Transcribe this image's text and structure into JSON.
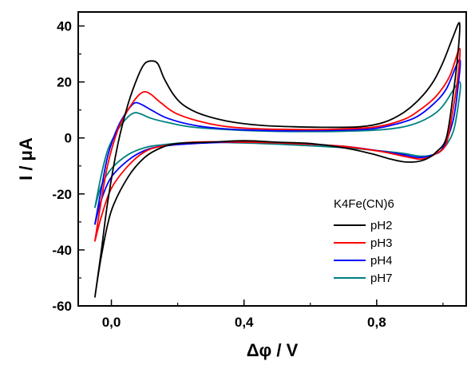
{
  "chart_data": {
    "type": "line",
    "title": "",
    "xlabel": "Δφ / V",
    "ylabel": "I / μA",
    "xlim": [
      -0.1,
      1.07
    ],
    "ylim": [
      -60,
      45
    ],
    "xticks": [
      {
        "value": 0.0,
        "label": "0,0"
      },
      {
        "value": 0.4,
        "label": "0,4"
      },
      {
        "value": 0.8,
        "label": "0,8"
      }
    ],
    "yticks": [
      {
        "value": -60,
        "label": "-60"
      },
      {
        "value": -40,
        "label": "-40"
      },
      {
        "value": -20,
        "label": "-20"
      },
      {
        "value": 0,
        "label": "0"
      },
      {
        "value": 20,
        "label": "20"
      },
      {
        "value": 40,
        "label": "40"
      }
    ],
    "grid": false,
    "legend": {
      "title": "K4Fe(CN)6",
      "position": "lower-right"
    },
    "series": [
      {
        "name": "pH2",
        "color": "#000000",
        "points": [
          [
            -0.05,
            -57
          ],
          [
            -0.03,
            -40
          ],
          [
            -0.01,
            -22
          ],
          [
            0.02,
            -2
          ],
          [
            0.05,
            12
          ],
          [
            0.08,
            22
          ],
          [
            0.1,
            26.5
          ],
          [
            0.12,
            27.5
          ],
          [
            0.14,
            26.5
          ],
          [
            0.16,
            21
          ],
          [
            0.19,
            15
          ],
          [
            0.22,
            11.5
          ],
          [
            0.27,
            8.5
          ],
          [
            0.35,
            6
          ],
          [
            0.45,
            4.5
          ],
          [
            0.55,
            4
          ],
          [
            0.65,
            3.8
          ],
          [
            0.75,
            4
          ],
          [
            0.82,
            5.5
          ],
          [
            0.88,
            9
          ],
          [
            0.93,
            14
          ],
          [
            0.97,
            20
          ],
          [
            1.0,
            27
          ],
          [
            1.03,
            36
          ],
          [
            1.05,
            41
          ],
          [
            1.045,
            30
          ],
          [
            1.03,
            15
          ],
          [
            1.01,
            0
          ],
          [
            0.98,
            -5
          ],
          [
            0.95,
            -7.5
          ],
          [
            0.92,
            -8.5
          ],
          [
            0.88,
            -8.5
          ],
          [
            0.84,
            -7.5
          ],
          [
            0.78,
            -5.5
          ],
          [
            0.7,
            -3.5
          ],
          [
            0.6,
            -2
          ],
          [
            0.5,
            -1.5
          ],
          [
            0.4,
            -1
          ],
          [
            0.3,
            -1.5
          ],
          [
            0.2,
            -2
          ],
          [
            0.15,
            -3.5
          ],
          [
            0.1,
            -7
          ],
          [
            0.05,
            -14
          ],
          [
            0.0,
            -26
          ],
          [
            -0.03,
            -42
          ],
          [
            -0.05,
            -57
          ]
        ]
      },
      {
        "name": "pH3",
        "color": "#ff0000",
        "points": [
          [
            -0.05,
            -37
          ],
          [
            -0.03,
            -22
          ],
          [
            -0.01,
            -9
          ],
          [
            0.02,
            3
          ],
          [
            0.05,
            10
          ],
          [
            0.08,
            15
          ],
          [
            0.1,
            16.5
          ],
          [
            0.12,
            15.5
          ],
          [
            0.15,
            12.5
          ],
          [
            0.2,
            8.5
          ],
          [
            0.3,
            5
          ],
          [
            0.4,
            3.5
          ],
          [
            0.55,
            3
          ],
          [
            0.7,
            3.2
          ],
          [
            0.8,
            4
          ],
          [
            0.88,
            6.5
          ],
          [
            0.93,
            10
          ],
          [
            0.98,
            15
          ],
          [
            1.02,
            22
          ],
          [
            1.05,
            32
          ],
          [
            1.045,
            22
          ],
          [
            1.03,
            10
          ],
          [
            1.01,
            -2
          ],
          [
            0.98,
            -5.5
          ],
          [
            0.94,
            -7.5
          ],
          [
            0.9,
            -7
          ],
          [
            0.82,
            -5
          ],
          [
            0.7,
            -3
          ],
          [
            0.55,
            -2
          ],
          [
            0.4,
            -1.5
          ],
          [
            0.25,
            -1.5
          ],
          [
            0.15,
            -3
          ],
          [
            0.1,
            -5
          ],
          [
            0.05,
            -10
          ],
          [
            0.0,
            -18
          ],
          [
            -0.03,
            -28
          ],
          [
            -0.05,
            -37
          ]
        ]
      },
      {
        "name": "pH4",
        "color": "#0000ff",
        "points": [
          [
            -0.05,
            -31
          ],
          [
            -0.03,
            -18
          ],
          [
            -0.01,
            -6
          ],
          [
            0.02,
            4
          ],
          [
            0.05,
            10
          ],
          [
            0.07,
            12.5
          ],
          [
            0.09,
            12
          ],
          [
            0.12,
            10
          ],
          [
            0.17,
            7
          ],
          [
            0.25,
            4.5
          ],
          [
            0.35,
            3.2
          ],
          [
            0.5,
            2.6
          ],
          [
            0.65,
            2.7
          ],
          [
            0.78,
            3.2
          ],
          [
            0.86,
            5
          ],
          [
            0.92,
            7.5
          ],
          [
            0.97,
            12
          ],
          [
            1.01,
            17.5
          ],
          [
            1.05,
            28
          ],
          [
            1.045,
            18
          ],
          [
            1.03,
            6
          ],
          [
            1.0,
            -3.5
          ],
          [
            0.97,
            -6
          ],
          [
            0.93,
            -7
          ],
          [
            0.88,
            -6
          ],
          [
            0.8,
            -4.5
          ],
          [
            0.7,
            -3
          ],
          [
            0.55,
            -2
          ],
          [
            0.4,
            -1.5
          ],
          [
            0.25,
            -2
          ],
          [
            0.15,
            -3
          ],
          [
            0.1,
            -4.5
          ],
          [
            0.05,
            -8
          ],
          [
            0.0,
            -14
          ],
          [
            -0.03,
            -22
          ],
          [
            -0.05,
            -31
          ]
        ]
      },
      {
        "name": "pH7",
        "color": "#008080",
        "points": [
          [
            -0.05,
            -25
          ],
          [
            -0.03,
            -13
          ],
          [
            -0.01,
            -4
          ],
          [
            0.02,
            3
          ],
          [
            0.05,
            7.5
          ],
          [
            0.07,
            9
          ],
          [
            0.09,
            8.5
          ],
          [
            0.12,
            7
          ],
          [
            0.17,
            5.5
          ],
          [
            0.25,
            3.8
          ],
          [
            0.4,
            2.7
          ],
          [
            0.55,
            2.3
          ],
          [
            0.7,
            2.4
          ],
          [
            0.82,
            3
          ],
          [
            0.9,
            4.5
          ],
          [
            0.96,
            7.5
          ],
          [
            1.0,
            11.5
          ],
          [
            1.05,
            20
          ],
          [
            1.045,
            11
          ],
          [
            1.03,
            2
          ],
          [
            1.0,
            -4
          ],
          [
            0.97,
            -6
          ],
          [
            0.93,
            -6.5
          ],
          [
            0.88,
            -5.5
          ],
          [
            0.8,
            -4.5
          ],
          [
            0.7,
            -3.5
          ],
          [
            0.55,
            -2.5
          ],
          [
            0.4,
            -1.8
          ],
          [
            0.25,
            -1.5
          ],
          [
            0.15,
            -2.5
          ],
          [
            0.1,
            -3.5
          ],
          [
            0.05,
            -6
          ],
          [
            0.0,
            -11
          ],
          [
            -0.03,
            -17
          ],
          [
            -0.05,
            -25
          ]
        ]
      }
    ]
  }
}
